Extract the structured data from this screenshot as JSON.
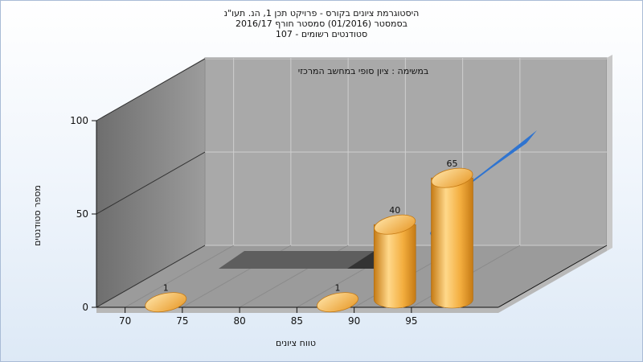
{
  "titles": {
    "line1": "היסטוגרמת ציונים בקורס - פרויקט תכן 1, הנ. תעו\"נ",
    "line2": "בסמסטר  (01/2016)  סמסטר חורף 2016/17",
    "line3": "סטודנטים רשומים - 107"
  },
  "chart_data": {
    "type": "bar",
    "subtitle": "במשימה : ציון סופי במחשב המרכזי",
    "xlabel": "טווח ציונים",
    "ylabel": "מספר סטודנטים",
    "x_ticks": [
      "70",
      "75",
      "80",
      "85",
      "90",
      "95"
    ],
    "y_ticks": [
      "0",
      "50",
      "100"
    ],
    "ylim": [
      0,
      100
    ],
    "grid": true,
    "bars": [
      {
        "x": 72.5,
        "value": 1,
        "label": "1"
      },
      {
        "x": 87.5,
        "value": 1,
        "label": "1"
      },
      {
        "x": 92.5,
        "value": 40,
        "label": "40"
      },
      {
        "x": 97.5,
        "value": 65,
        "label": "65"
      }
    ],
    "colors": {
      "bar_light": "#ffd88a",
      "bar_mid": "#f3ad3e",
      "bar_dark": "#c57a14",
      "curve": "#2f74d0",
      "wall": "#a8a8a8",
      "floor": "#9a9a9a",
      "side_wall": "#848484"
    }
  }
}
